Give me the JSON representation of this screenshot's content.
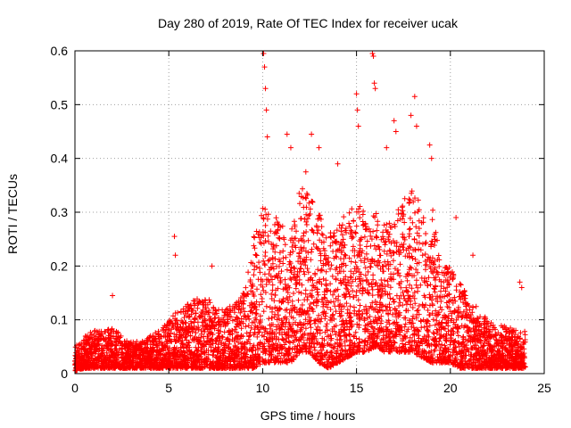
{
  "chart_data": {
    "type": "scatter",
    "title": "Day 280 of 2019, Rate Of TEC Index for receiver ucak",
    "xlabel": "GPS time / hours",
    "ylabel": "ROTI / TECUs",
    "xlim": [
      0,
      25
    ],
    "ylim": [
      0,
      0.6
    ],
    "xticks": [
      0,
      5,
      10,
      15,
      20,
      25
    ],
    "yticks": [
      0,
      0.1,
      0.2,
      0.3,
      0.4,
      0.5,
      0.6
    ],
    "xtick_labels": [
      "0",
      "5",
      "10",
      "15",
      "20",
      "25"
    ],
    "ytick_labels": [
      "0",
      "0.1",
      "0.2",
      "0.3",
      "0.4",
      "0.5",
      "0.6"
    ],
    "grid": true,
    "marker": "+",
    "series_color": "#ff0000",
    "envelope": {
      "description": "approximate upper and lower envelope of the dense ROTI point cloud",
      "x": [
        0,
        0.5,
        1,
        1.5,
        2,
        2.5,
        3,
        3.5,
        4,
        4.5,
        5,
        5.5,
        6,
        6.5,
        7,
        7.5,
        8,
        8.5,
        9,
        9.5,
        10,
        10.5,
        11,
        11.5,
        12,
        12.5,
        13,
        13.5,
        14,
        14.5,
        15,
        15.5,
        16,
        16.5,
        17,
        17.5,
        18,
        18.5,
        19,
        19.5,
        20,
        20.5,
        21,
        21.5,
        22,
        22.5,
        23,
        23.5,
        24
      ],
      "upper": [
        0.05,
        0.07,
        0.08,
        0.08,
        0.09,
        0.07,
        0.06,
        0.06,
        0.07,
        0.08,
        0.1,
        0.12,
        0.13,
        0.14,
        0.14,
        0.13,
        0.12,
        0.13,
        0.16,
        0.25,
        0.32,
        0.3,
        0.28,
        0.26,
        0.35,
        0.33,
        0.3,
        0.26,
        0.28,
        0.3,
        0.32,
        0.3,
        0.3,
        0.28,
        0.3,
        0.32,
        0.36,
        0.3,
        0.32,
        0.2,
        0.2,
        0.17,
        0.14,
        0.12,
        0.1,
        0.09,
        0.09,
        0.08,
        0.08
      ],
      "lower": [
        0.005,
        0.01,
        0.01,
        0.01,
        0.01,
        0.01,
        0.01,
        0.01,
        0.01,
        0.01,
        0.01,
        0.01,
        0.01,
        0.01,
        0.01,
        0.01,
        0.01,
        0.01,
        0.01,
        0.01,
        0.02,
        0.02,
        0.02,
        0.02,
        0.04,
        0.04,
        0.02,
        0.01,
        0.02,
        0.03,
        0.04,
        0.04,
        0.05,
        0.04,
        0.04,
        0.04,
        0.04,
        0.03,
        0.02,
        0.02,
        0.02,
        0.01,
        0.01,
        0.01,
        0.01,
        0.01,
        0.01,
        0.01,
        0.01
      ]
    },
    "outliers": {
      "x": [
        2.0,
        5.3,
        5.35,
        7.3,
        10.05,
        10.1,
        10.15,
        10.2,
        10.25,
        11.3,
        11.5,
        12.3,
        12.6,
        13.0,
        14.0,
        15.0,
        15.05,
        15.1,
        15.85,
        15.9,
        15.95,
        16.0,
        16.6,
        17.0,
        17.1,
        17.9,
        18.1,
        18.2,
        18.9,
        19.0,
        20.3,
        21.2,
        23.7,
        23.8
      ],
      "y": [
        0.145,
        0.255,
        0.22,
        0.2,
        0.595,
        0.57,
        0.53,
        0.49,
        0.44,
        0.445,
        0.42,
        0.375,
        0.445,
        0.42,
        0.39,
        0.52,
        0.49,
        0.46,
        0.595,
        0.59,
        0.54,
        0.53,
        0.42,
        0.47,
        0.45,
        0.48,
        0.515,
        0.46,
        0.425,
        0.4,
        0.29,
        0.22,
        0.17,
        0.16
      ]
    }
  }
}
